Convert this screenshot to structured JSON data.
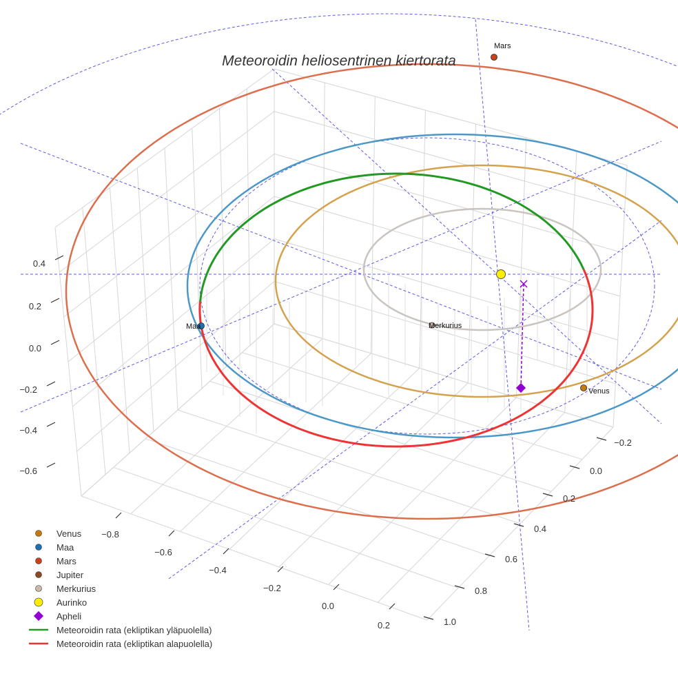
{
  "chart_data": {
    "type": "line",
    "title": "Meteoroidin heliosentrinen kiertorata",
    "axes": {
      "x_ticks": [
        "−0.8",
        "−0.6",
        "−0.4",
        "−0.2",
        "0.0",
        "0.2"
      ],
      "y_ticks": [
        "−0.2",
        "0.0",
        "0.2",
        "0.4",
        "0.6",
        "0.8",
        "1.0"
      ],
      "z_ticks": [
        "0.4",
        "0.2",
        "0.0",
        "−0.2",
        "−0.4",
        "−0.6"
      ],
      "grid": true,
      "ecliptic_grid": "dashed-polar"
    },
    "bodies": [
      {
        "name": "Venus",
        "color": "#c47b0e"
      },
      {
        "name": "Maa",
        "color": "#1f6fb4"
      },
      {
        "name": "Mars",
        "color": "#c7431d"
      },
      {
        "name": "Jupiter",
        "color": "#8c4a22"
      },
      {
        "name": "Merkurius",
        "color": "#c9b7ac"
      }
    ],
    "orbit_colors": {
      "Venus": "#d4a24c",
      "Maa": "#4b98c8",
      "Mars": "#dd6e4c",
      "Merkurius": "#c9c4bf"
    },
    "point_labels": {
      "mars": "Mars",
      "maa": "Maa",
      "merkurius": "Merkurius",
      "venus": "Venus"
    },
    "sun": {
      "name": "Aurinko",
      "color": "#ffee00"
    },
    "aphelion": {
      "name": "Apheli",
      "color": "#9400d3"
    },
    "meteoroid": [
      {
        "name": "Meteoroidin rata (ekliptikan yläpuolella)",
        "color": "#229922"
      },
      {
        "name": "Meteoroidin rata (ekliptikan alapuolella)",
        "color": "#ee3333"
      }
    ],
    "legend": {
      "position": "bottom-left",
      "entries": [
        {
          "label": "Venus",
          "marker": "dot",
          "color": "#c47b0e"
        },
        {
          "label": "Maa",
          "marker": "dot",
          "color": "#1f6fb4"
        },
        {
          "label": "Mars",
          "marker": "dot",
          "color": "#c7431d"
        },
        {
          "label": "Jupiter",
          "marker": "dot",
          "color": "#8c4a22"
        },
        {
          "label": "Merkurius",
          "marker": "dot",
          "color": "#c9b7ac"
        },
        {
          "label": "Aurinko",
          "marker": "bigdot",
          "color": "#ffee00"
        },
        {
          "label": "Apheli",
          "marker": "diamond",
          "color": "#9400d3"
        },
        {
          "label": "Meteoroidin rata (ekliptikan yläpuolella)",
          "marker": "line",
          "color": "#229922"
        },
        {
          "label": "Meteoroidin rata (ekliptikan alapuolella)",
          "marker": "line",
          "color": "#ee3333"
        }
      ]
    }
  }
}
